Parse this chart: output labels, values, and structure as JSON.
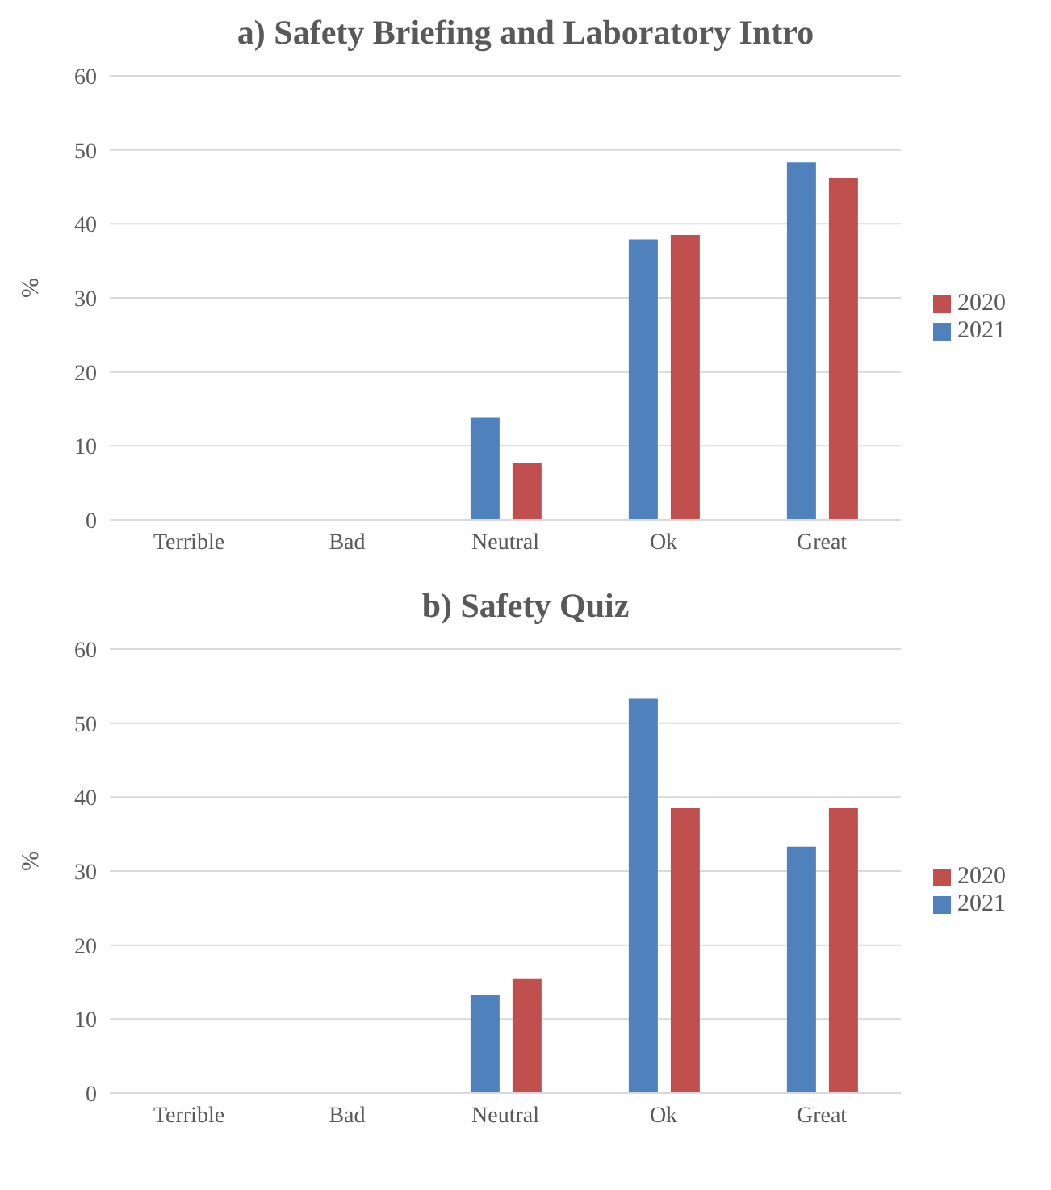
{
  "chart_data": [
    {
      "type": "bar",
      "title": "a) Safety Briefing and Laboratory Intro",
      "ylabel": "%",
      "categories": [
        "Terrible",
        "Bad",
        "Neutral",
        "Ok",
        "Great"
      ],
      "series": [
        {
          "name": "2021",
          "color": "#4f81bd",
          "values": [
            0,
            0,
            13.8,
            37.9,
            48.3
          ]
        },
        {
          "name": "2020",
          "color": "#c0504d",
          "values": [
            0,
            0,
            7.7,
            38.5,
            46.2
          ]
        }
      ],
      "ylim": [
        0,
        60
      ],
      "yticks": [
        0,
        10,
        20,
        30,
        40,
        50,
        60
      ],
      "grid": "y",
      "legend": "right"
    },
    {
      "type": "bar",
      "title": "b) Safety Quiz",
      "ylabel": "%",
      "categories": [
        "Terrible",
        "Bad",
        "Neutral",
        "Ok",
        "Great"
      ],
      "series": [
        {
          "name": "2021",
          "color": "#4f81bd",
          "values": [
            0,
            0,
            13.3,
            53.3,
            33.3
          ]
        },
        {
          "name": "2020",
          "color": "#c0504d",
          "values": [
            0,
            0,
            15.4,
            38.5,
            38.5
          ]
        }
      ],
      "ylim": [
        0,
        60
      ],
      "yticks": [
        0,
        10,
        20,
        30,
        40,
        50,
        60
      ],
      "grid": "y",
      "legend": "right"
    }
  ]
}
